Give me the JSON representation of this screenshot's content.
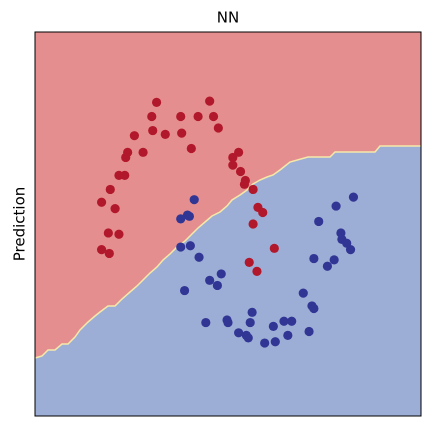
{
  "chart_data": {
    "type": "scatter",
    "title": "NN",
    "y_label": "Prediction",
    "xlim": [
      -1.5,
      2.5
    ],
    "ylim": [
      -1.25,
      1.75
    ],
    "series": [
      {
        "color": "#b2182b",
        "x": [
          -0.24,
          0.31,
          -0.29,
          0.01,
          0.19,
          0.35,
          -0.47,
          -0.28,
          -0.15,
          0.02,
          0.4,
          -0.54,
          -0.56,
          -0.38,
          0.12,
          0.61,
          0.55,
          0.55,
          0.63,
          -0.63,
          -0.57,
          0.68,
          0.67,
          -0.72,
          0.76,
          -0.81,
          -0.67,
          0.81,
          0.86,
          0.76,
          -0.74,
          -0.63,
          0.98,
          -0.81,
          -0.73,
          0.72,
          0.8
        ],
        "y": [
          1.2,
          1.21,
          1.09,
          1.09,
          1.09,
          1.09,
          0.94,
          0.98,
          0.95,
          0.96,
          1.0,
          0.81,
          0.77,
          0.81,
          0.84,
          0.81,
          0.77,
          0.71,
          0.66,
          0.63,
          0.63,
          0.59,
          0.56,
          0.52,
          0.52,
          0.42,
          0.37,
          0.38,
          0.34,
          0.25,
          0.18,
          0.17,
          0.06,
          0.05,
          0.02,
          -0.05,
          -0.12
        ]
      },
      {
        "color": "#313695",
        "x": [
          0.15,
          0.08,
          0.01,
          0.1,
          1.8,
          1.62,
          1.44,
          1.67,
          1.68,
          1.73,
          1.77,
          0.01,
          0.11,
          0.2,
          1.39,
          1.6,
          1.53,
          0.43,
          0.31,
          0.39,
          0.05,
          1.28,
          1.37,
          1.39,
          0.75,
          0.27,
          0.49,
          0.5,
          0.73,
          1.08,
          1.16,
          0.97,
          1.34,
          0.61,
          0.69,
          0.71,
          1.12,
          0.88,
          0.99
        ],
        "y": [
          0.44,
          0.32,
          0.29,
          0.31,
          0.46,
          0.39,
          0.27,
          0.18,
          0.13,
          0.1,
          0.05,
          0.07,
          0.08,
          -0.01,
          -0.02,
          -0.03,
          -0.08,
          -0.14,
          -0.19,
          -0.23,
          -0.27,
          -0.29,
          -0.39,
          -0.41,
          -0.44,
          -0.52,
          -0.5,
          -0.52,
          -0.52,
          -0.51,
          -0.51,
          -0.55,
          -0.59,
          -0.6,
          -0.62,
          -0.64,
          -0.62,
          -0.68,
          -0.67
        ]
      }
    ]
  }
}
